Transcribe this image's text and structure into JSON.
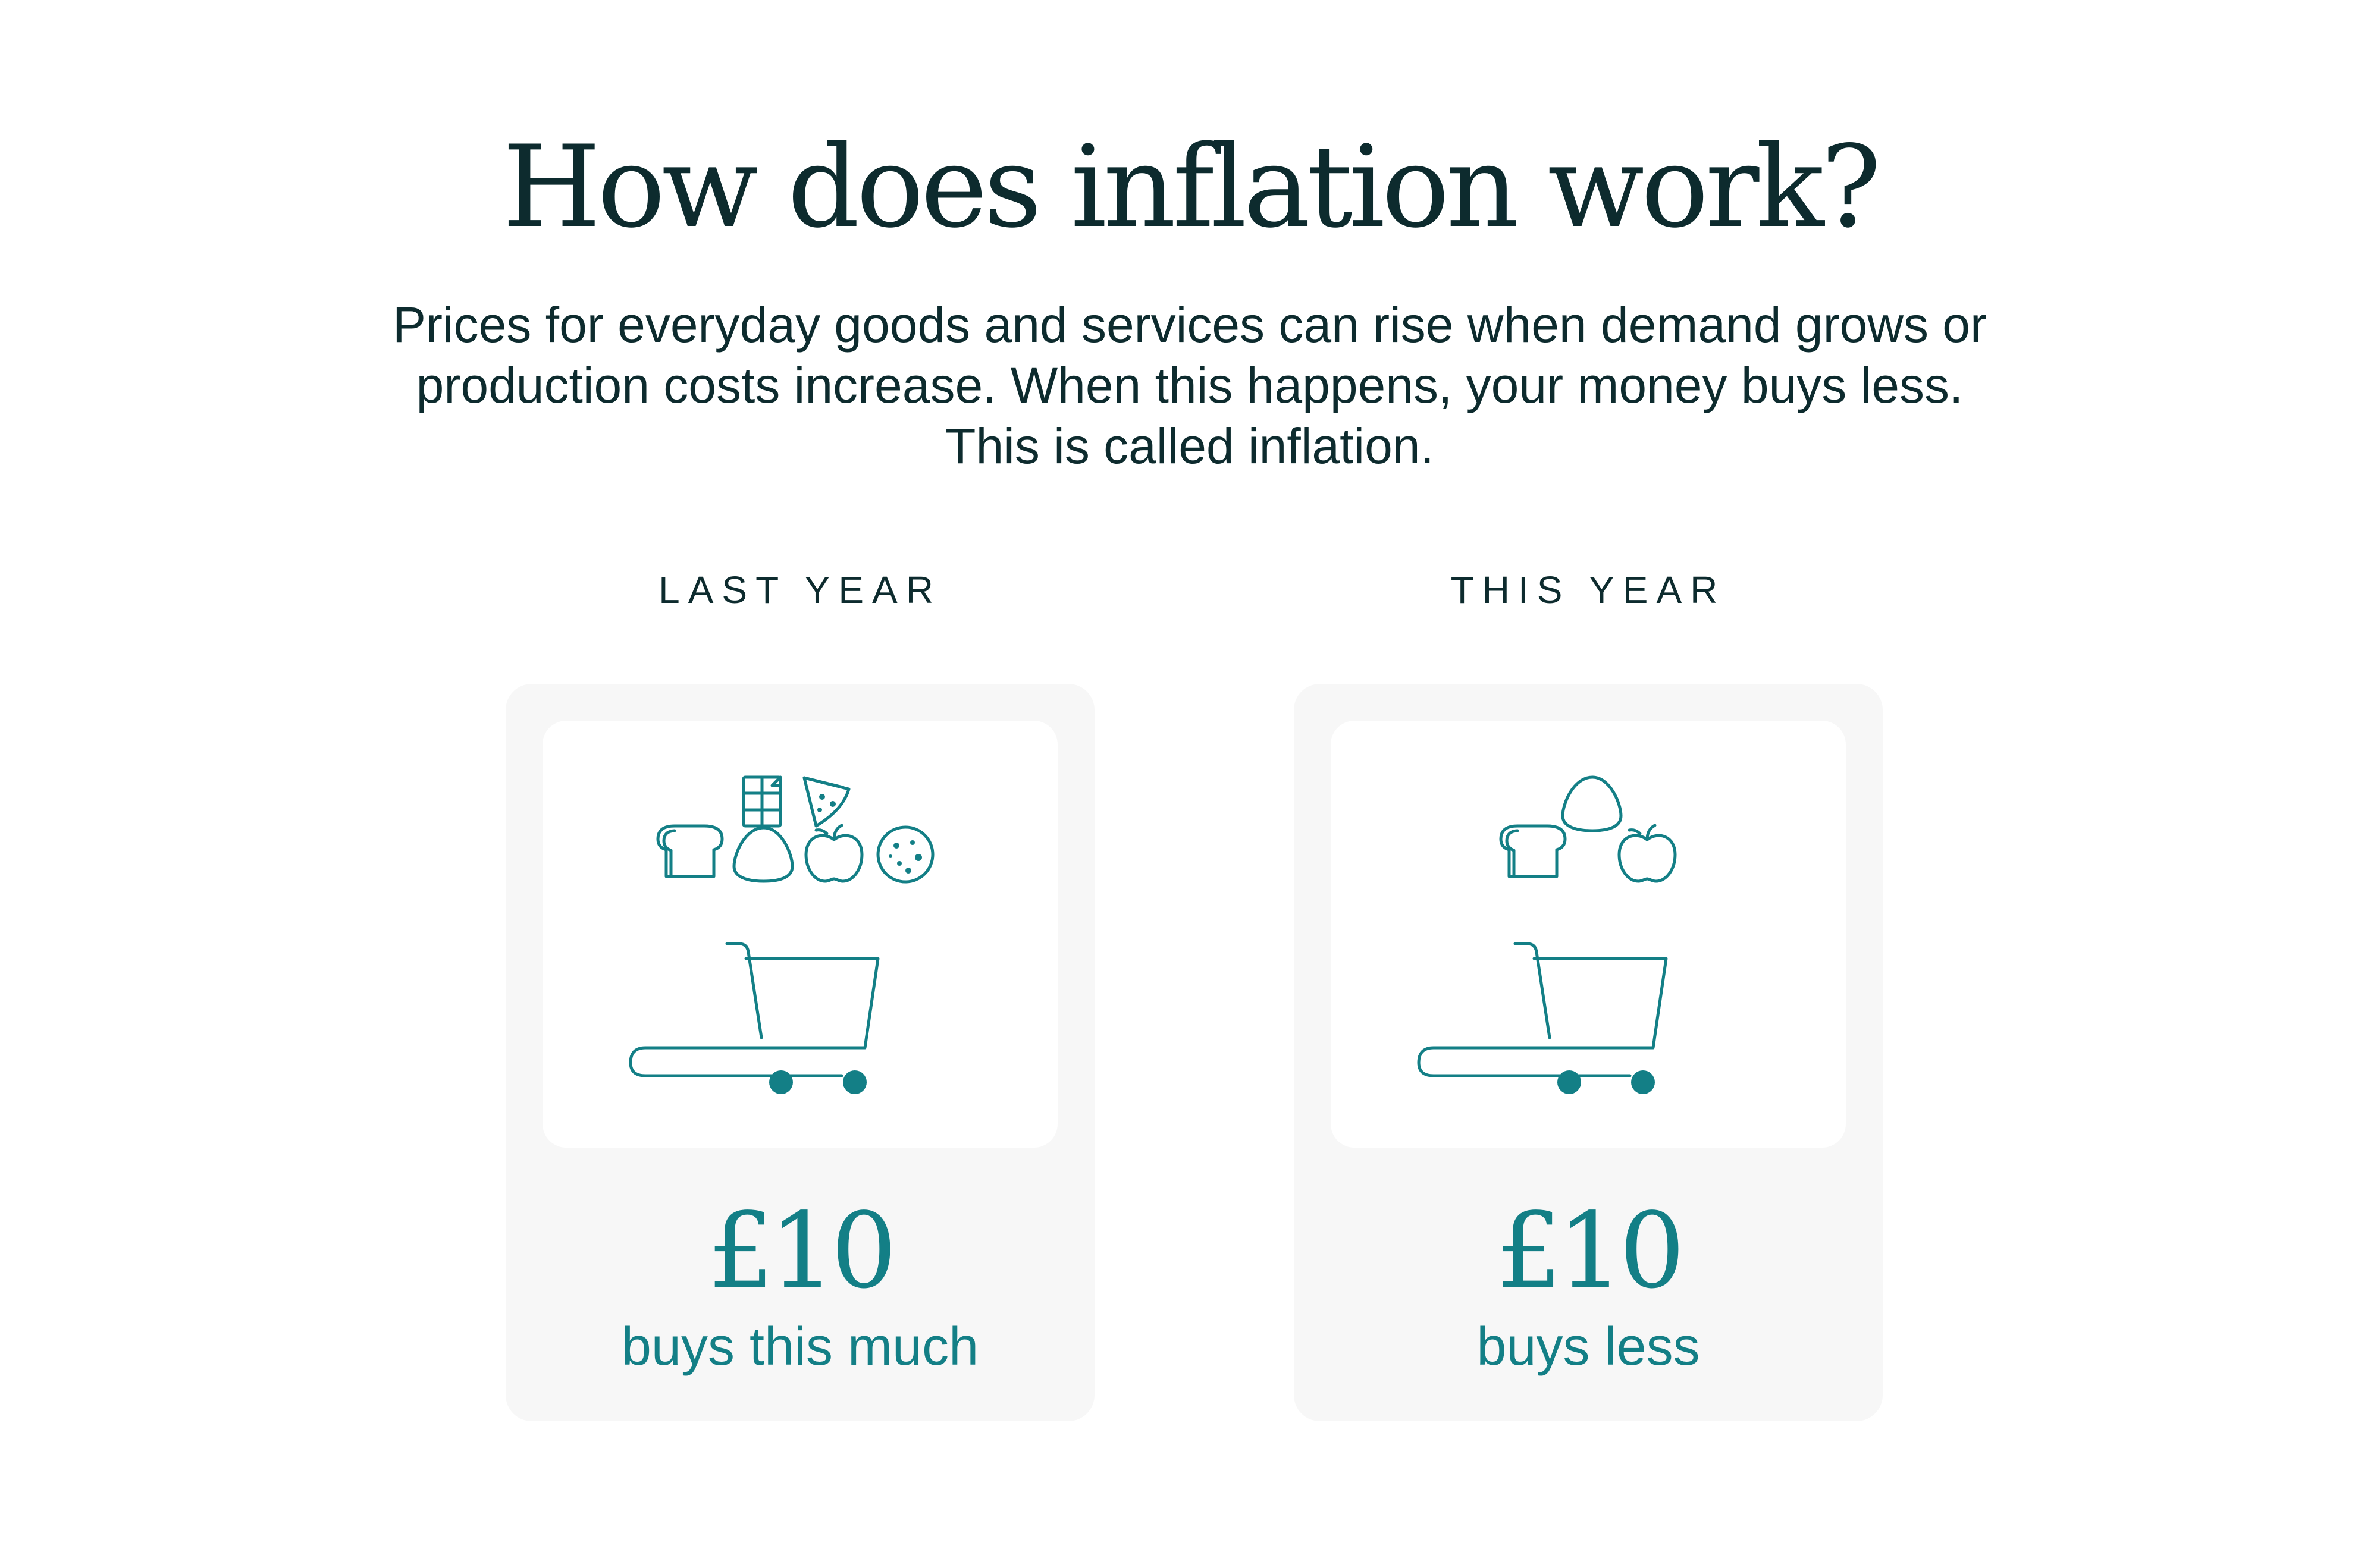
{
  "heading": "How does inflation work?",
  "intro": {
    "line1": "Prices for everyday goods and services can rise when demand grows or",
    "line2": "production costs increase. When this happens, your money buys less.",
    "line3": "This is called inflation."
  },
  "columns": [
    {
      "label": "LAST YEAR",
      "amount": "£10",
      "caption": "buys this much",
      "items": [
        "chocolate-bar-icon",
        "pizza-slice-icon",
        "bread-icon",
        "egg-icon",
        "apple-icon",
        "cookie-icon",
        "shopping-cart-icon"
      ]
    },
    {
      "label": "THIS YEAR",
      "amount": "£10",
      "caption": "buys less",
      "items": [
        "egg-icon",
        "bread-icon",
        "apple-icon",
        "shopping-cart-icon"
      ]
    }
  ],
  "colors": {
    "text": "#0d2b2e",
    "accent": "#137f86",
    "card_bg": "#f7f7f7",
    "card_inner_bg": "#ffffff"
  }
}
